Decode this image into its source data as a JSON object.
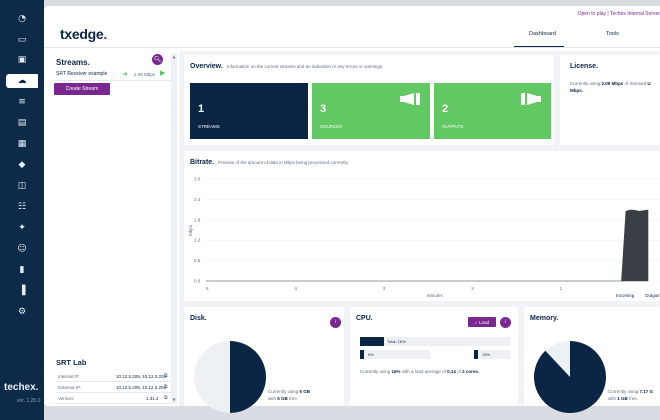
{
  "colors": {
    "navy": "#0b2545",
    "purple": "#7a2890",
    "green": "#62c864",
    "rail": "#0d2b48"
  },
  "rail": {
    "icons": [
      "dashboard-icon",
      "router-icon",
      "laptop-icon",
      "cloud-icon",
      "list-icon",
      "layers-icon",
      "calendar-icon",
      "tag-icon",
      "columns-icon",
      "hierarchy-icon",
      "gift-icon",
      "users-icon",
      "folder-icon",
      "bar-chart-icon",
      "settings-icon"
    ],
    "brand": "techex.",
    "version": "ver. 1.25.0"
  },
  "header": {
    "logo_main": "txedge",
    "logo_dot": ".",
    "top_link": "Open to play | Techex Internal Server",
    "tabs": [
      "Dashboard",
      "Tools"
    ]
  },
  "streams": {
    "title": "Streams.",
    "items": [
      {
        "name": "SRT Receiver example",
        "rate": "2.09 Mbps"
      }
    ],
    "create_label": "Create Stream"
  },
  "lab": {
    "title": "SRT Lab",
    "rows": [
      {
        "key": "Internal IP:",
        "value": "10.12.5.209, 10.12.3.202"
      },
      {
        "key": "External IP:",
        "value": "10.12.5.209, 10.12.3.202"
      },
      {
        "key": "Version:",
        "value": "1.31.2"
      }
    ]
  },
  "overview": {
    "title": "Overview.",
    "subtitle": "Information on the current streams and an indication or any errors or warnings.",
    "tiles": [
      {
        "value": "1",
        "label": "STREAMS",
        "color": "#0b2545"
      },
      {
        "value": "3",
        "label": "SOURCES",
        "color": "#62c864"
      },
      {
        "value": "2",
        "label": "OUTPUTS",
        "color": "#62c864"
      }
    ]
  },
  "license": {
    "title": "License.",
    "text_pre": "Currently using",
    "text_value": "2.09 Mbps",
    "text_post": "of licensed",
    "text_tail": "Mbps."
  },
  "bitrate": {
    "title": "Bitrate.",
    "subtitle": "Preview of the amount of data in Mbps being processed currently."
  },
  "chart_data": {
    "type": "area",
    "title": "Bitrate.",
    "xlabel": "Minutes",
    "ylabel": "Mbps",
    "x_ticks": [
      "5",
      "4",
      "3",
      "2",
      "1"
    ],
    "y_ticks": [
      "3.0",
      "2.4",
      "1.8",
      "1.2",
      "0.6",
      "0.0"
    ],
    "ylim": [
      0,
      3.0
    ],
    "xlim": [
      5,
      0
    ],
    "grid": true,
    "legend": "bottom-right",
    "series": [
      {
        "name": "Incoming",
        "color": "#3a3f45",
        "points": [
          [
            5,
            0
          ],
          [
            0.3,
            0
          ],
          [
            0.25,
            2.05
          ],
          [
            0.2,
            2.09
          ],
          [
            0.15,
            2.08
          ],
          [
            0.1,
            2.05
          ],
          [
            0,
            2.09
          ]
        ]
      },
      {
        "name": "Outgoing",
        "color": "#62c864",
        "points": []
      }
    ]
  },
  "disk": {
    "title": "Disk.",
    "used_pct": 50,
    "text_pre": "Currently using",
    "used": "5 GB",
    "text_mid": "with",
    "free": "5 GB",
    "text_post": "free."
  },
  "cpu": {
    "title": "CPU.",
    "load_label": "Load",
    "total_label": "Total: 16%",
    "total_pct": 16,
    "cores": [
      {
        "label": "0%",
        "pct": 0
      },
      {
        "label": "13%",
        "pct": 13
      }
    ],
    "text_pre": "Currently using",
    "used": "16%",
    "text_mid": "with a load average of",
    "load": "0.14",
    "text_mid2": "of",
    "cores_text": "2 cores."
  },
  "memory": {
    "title": "Memory.",
    "used_pct": 88,
    "text_pre": "Currently using",
    "used": "7.17 G",
    "text_mid": "with",
    "free": "1 GB",
    "text_post": "free."
  }
}
